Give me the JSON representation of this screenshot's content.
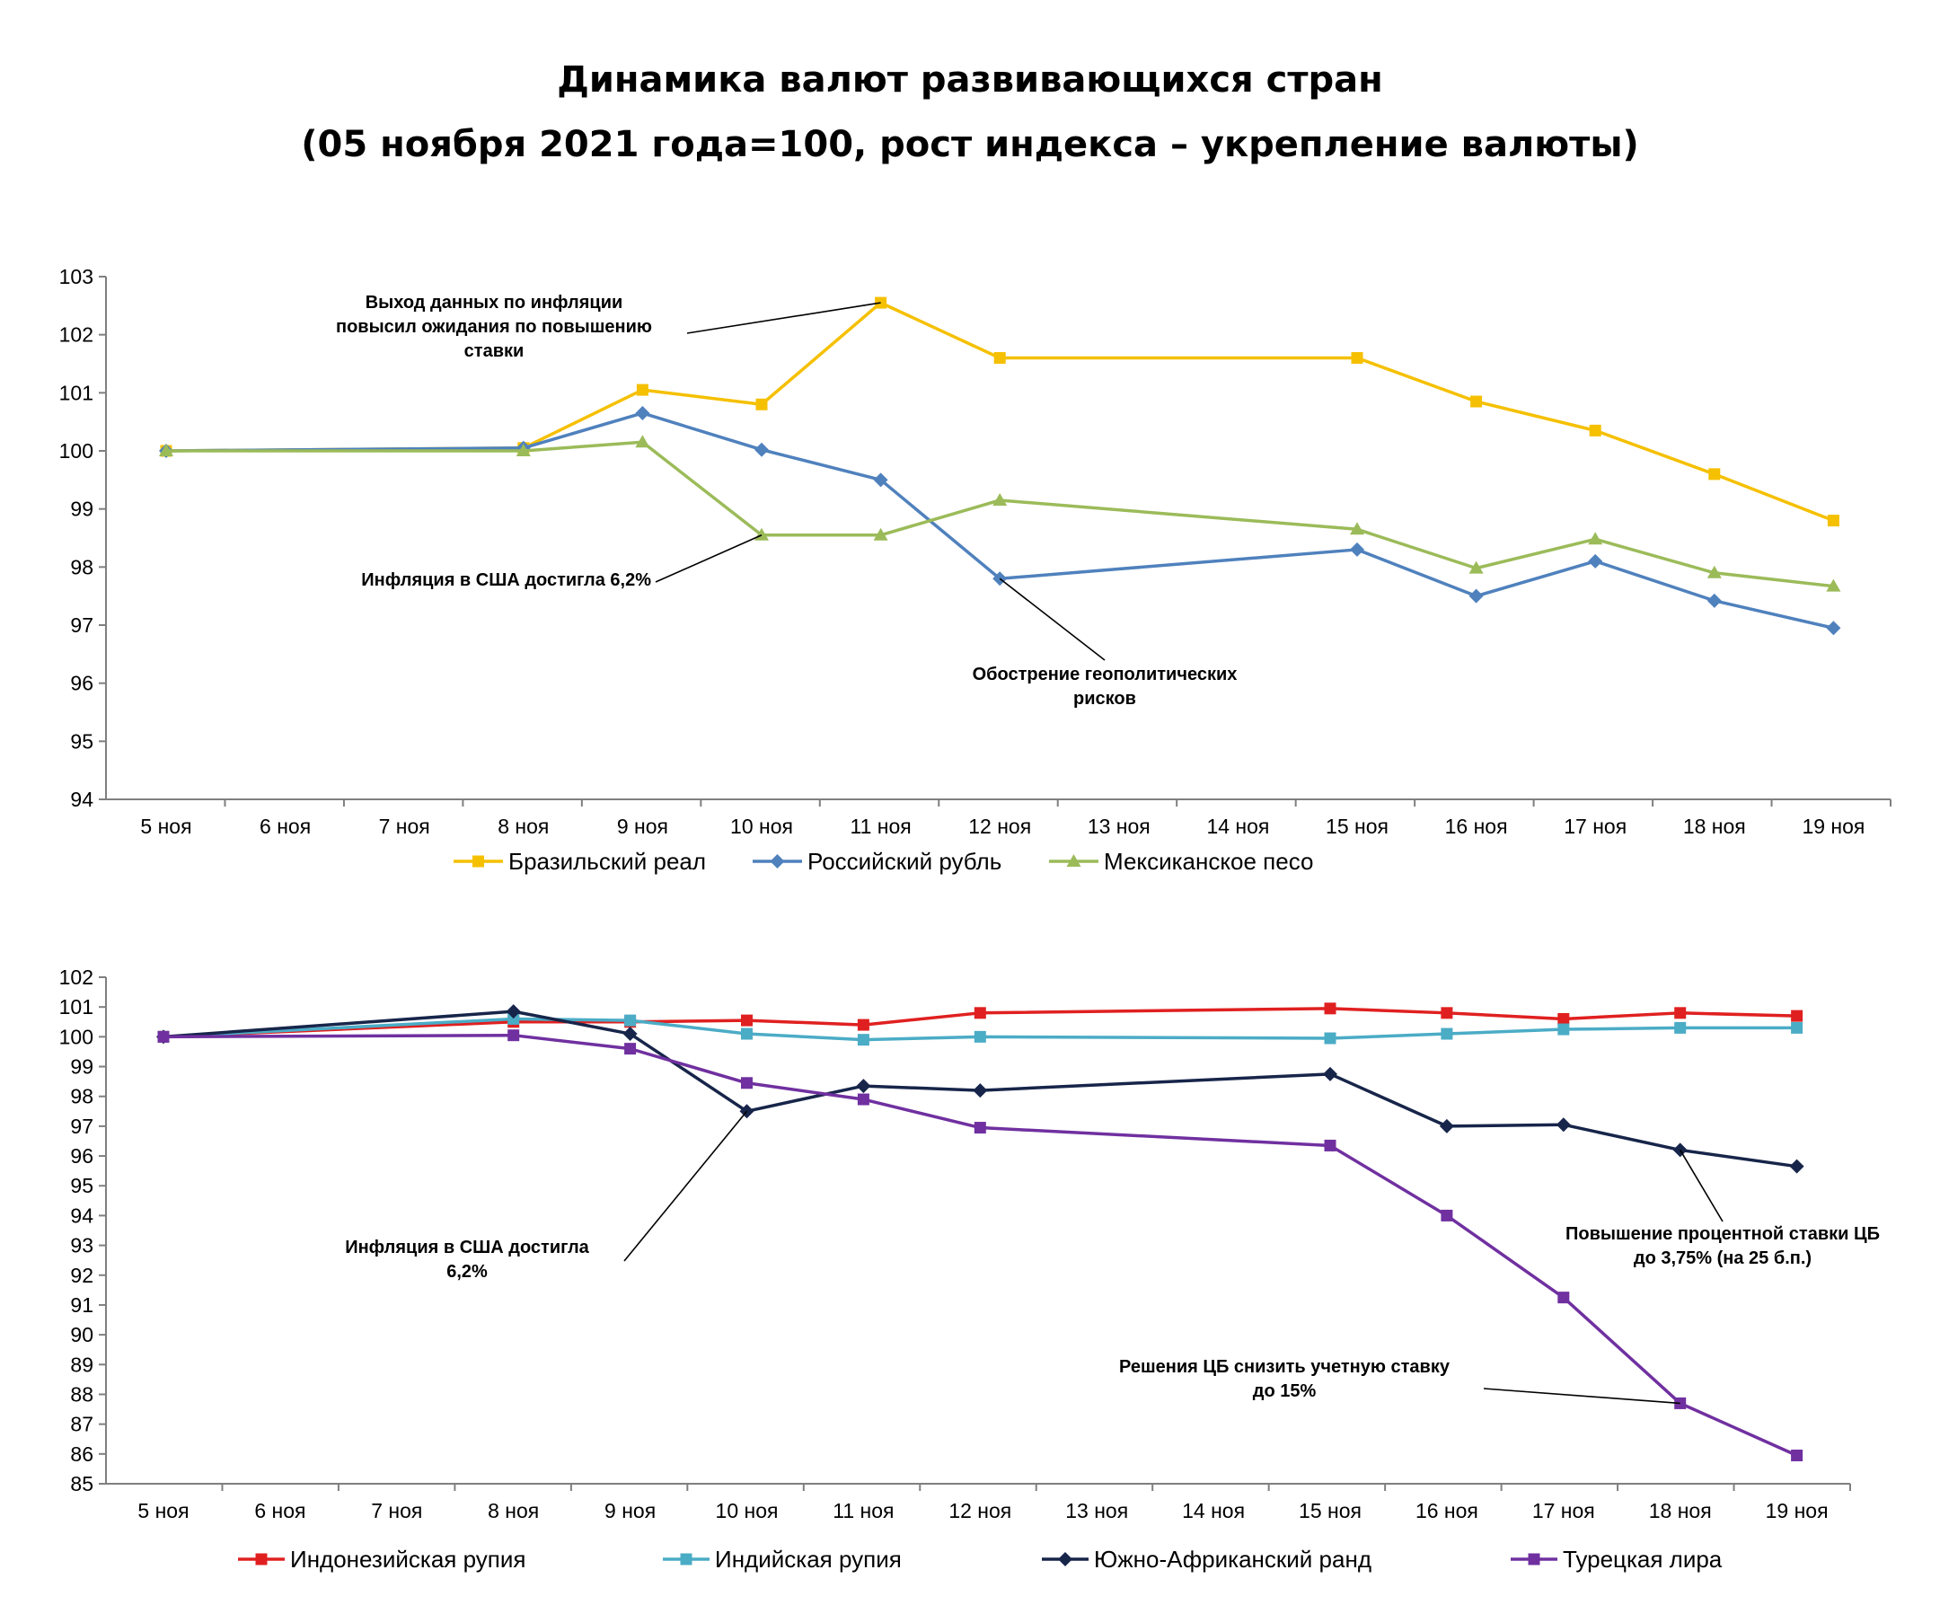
{
  "title_line1": "Динамика валют развивающихся стран",
  "title_line2": "(05 ноября 2021 года=100, рост индекса – укрепление валюты)",
  "chart_data": [
    {
      "type": "line",
      "categories": [
        "5 ноя",
        "6 ноя",
        "7 ноя",
        "8 ноя",
        "9 ноя",
        "10 ноя",
        "11 ноя",
        "12 ноя",
        "13 ноя",
        "14 ноя",
        "15 ноя",
        "16 ноя",
        "17 ноя",
        "18 ноя",
        "19 ноя"
      ],
      "ylim": [
        94,
        103
      ],
      "yticks": [
        94,
        95,
        96,
        97,
        98,
        99,
        100,
        101,
        102,
        103
      ],
      "legend_position": "bottom",
      "series": [
        {
          "name": "Бразильский реал",
          "color": "#F5C000",
          "marker": "square",
          "values": [
            100,
            null,
            null,
            100.05,
            101.05,
            100.8,
            102.55,
            101.6,
            null,
            null,
            101.6,
            100.85,
            100.35,
            99.6,
            98.8
          ]
        },
        {
          "name": "Российский рубль",
          "color": "#4F81BD",
          "marker": "diamond",
          "values": [
            100,
            null,
            null,
            100.05,
            100.65,
            100.02,
            99.5,
            97.8,
            null,
            null,
            98.3,
            97.5,
            98.1,
            97.42,
            96.95
          ]
        },
        {
          "name": "Мексиканское песо",
          "color": "#9BBB59",
          "marker": "triangle",
          "values": [
            100,
            null,
            null,
            100.0,
            100.15,
            98.55,
            98.55,
            99.15,
            null,
            null,
            98.65,
            97.98,
            98.48,
            97.9,
            97.67
          ]
        }
      ],
      "annotations": [
        {
          "lines": [
            "Выход данных по инфляции",
            "повысил ожидания по повышению",
            "ставки"
          ],
          "category": "11 ноя",
          "y": 102.55
        },
        {
          "lines": [
            "Инфляция в США достигла 6,2%"
          ],
          "category": "10 ноя",
          "y": 98.55
        },
        {
          "lines": [
            "Обострение геополитических",
            "рисков"
          ],
          "category": "12 ноя",
          "y": 97.8
        }
      ]
    },
    {
      "type": "line",
      "categories": [
        "5 ноя",
        "6 ноя",
        "7 ноя",
        "8 ноя",
        "9 ноя",
        "10 ноя",
        "11 ноя",
        "12 ноя",
        "13 ноя",
        "14 ноя",
        "15 ноя",
        "16 ноя",
        "17 ноя",
        "18 ноя",
        "19 ноя"
      ],
      "ylim": [
        85,
        102
      ],
      "yticks": [
        85,
        86,
        87,
        88,
        89,
        90,
        91,
        92,
        93,
        94,
        95,
        96,
        97,
        98,
        99,
        100,
        101,
        102
      ],
      "legend_position": "bottom",
      "series": [
        {
          "name": "Индонезийская рупия",
          "color": "#E02020",
          "marker": "square",
          "values": [
            100,
            null,
            null,
            100.5,
            100.5,
            100.55,
            100.4,
            100.8,
            null,
            null,
            100.95,
            100.8,
            100.6,
            100.8,
            100.7
          ]
        },
        {
          "name": "Индийская рупия",
          "color": "#4BACC6",
          "marker": "square",
          "values": [
            100,
            null,
            null,
            100.6,
            100.55,
            100.1,
            99.9,
            100.0,
            null,
            null,
            99.95,
            100.1,
            100.25,
            100.3,
            100.3
          ]
        },
        {
          "name": "Южно-Африканский ранд",
          "color": "#17254A",
          "marker": "diamond",
          "values": [
            100,
            null,
            null,
            100.85,
            100.1,
            97.5,
            98.35,
            98.2,
            null,
            null,
            98.75,
            97.0,
            97.05,
            96.2,
            95.65
          ]
        },
        {
          "name": "Турецкая лира",
          "color": "#7030A0",
          "marker": "square",
          "values": [
            100,
            null,
            null,
            100.05,
            99.6,
            98.45,
            97.9,
            96.95,
            null,
            null,
            96.35,
            94.0,
            91.25,
            87.7,
            85.95
          ]
        }
      ],
      "annotations": [
        {
          "lines": [
            "Инфляция в США достигла",
            "6,2%"
          ],
          "category": "10 ноя",
          "y": 97.5
        },
        {
          "lines": [
            "Повышение процентной ставки ЦБ",
            "до 3,75% (на 25 б.п.)"
          ],
          "category": "18 ноя",
          "y": 96.2
        },
        {
          "lines": [
            "Решения ЦБ снизить учетную ставку",
            "до 15%"
          ],
          "category": "18 ноя",
          "y": 87.7
        }
      ]
    }
  ]
}
